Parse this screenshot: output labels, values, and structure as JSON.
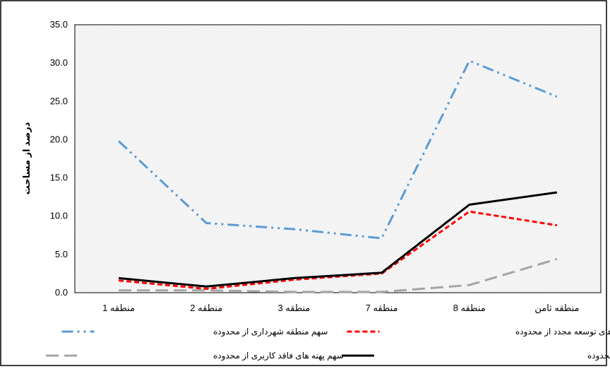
{
  "chart_data": {
    "type": "line",
    "title": "",
    "xlabel": "",
    "ylabel": "درصد از مساحت",
    "ylim": [
      0,
      35
    ],
    "ytick_step": 5,
    "ytick_labels": [
      "0.0",
      "5.0",
      "10.0",
      "15.0",
      "20.0",
      "25.0",
      "30.0",
      "35.0"
    ],
    "grid": false,
    "background_pattern": "diagonal-hatch",
    "legend_position": "bottom",
    "categories": [
      "منطقه 1",
      "منطقه 2",
      "منطقه 3",
      "منطقه 7",
      "منطقه 8",
      "منطقه ثامن"
    ],
    "series": [
      {
        "name": "سهم منطقه شهرداری از محدوده",
        "values": [
          19.8,
          9.1,
          8.3,
          7.1,
          30.3,
          25.6
        ],
        "color": "#5b9bd5",
        "dash": "long-dash-dot-dot"
      },
      {
        "name": "سهم پهنه های توسعه مجدد از محدوده",
        "values": [
          1.6,
          0.5,
          1.7,
          2.5,
          10.6,
          8.8
        ],
        "color": "#ff0000",
        "dash": "short-dash"
      },
      {
        "name": "سهم پهنه های فاقد کاربری از محدوده",
        "values": [
          0.3,
          0.3,
          0.1,
          0.1,
          1.0,
          4.4
        ],
        "color": "#a5a5a5",
        "dash": "long-dash"
      },
      {
        "name": "سهم مجموع پهنه های فاقد کاربری و توسعه مجدد از محدوده",
        "values": [
          1.9,
          0.8,
          1.9,
          2.6,
          11.5,
          13.1
        ],
        "color": "#000000",
        "dash": "solid"
      }
    ]
  }
}
